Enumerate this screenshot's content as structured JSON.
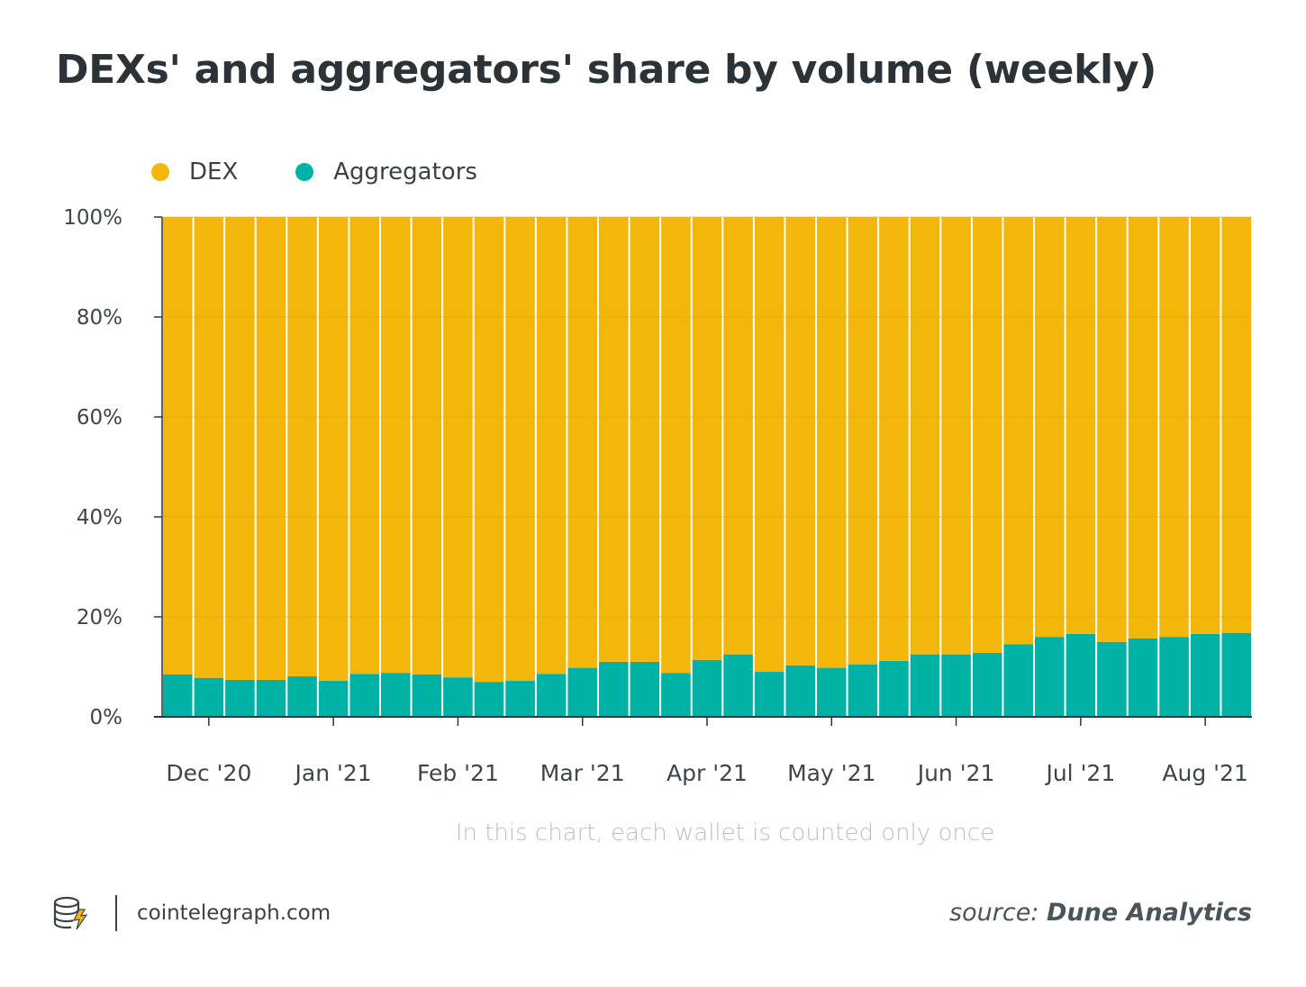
{
  "title": "DEXs' and aggregators' share by volume (weekly)",
  "note": "In this chart, each wallet is counted only once",
  "brand": {
    "text": "cointelegraph.com",
    "logo_icon": "cointelegraph-logo-icon"
  },
  "source": {
    "prefix": "source:",
    "name": "Dune Analytics"
  },
  "colors": {
    "dex": "#f3b70c",
    "aggregators": "#00b2a6",
    "axis": "#2d3439",
    "grid": "#e7a40a"
  },
  "chart_data": {
    "type": "bar",
    "stacked": true,
    "orientation": "vertical",
    "legend_position": "top-left",
    "grid": true,
    "ylim": [
      0,
      100
    ],
    "yticks": [
      "0%",
      "20%",
      "40%",
      "60%",
      "80%",
      "100%"
    ],
    "xticks": [
      "Dec '20",
      "Jan '21",
      "Feb '21",
      "Mar '21",
      "Apr '21",
      "May '21",
      "Jun '21",
      "Jul '21",
      "Aug '21"
    ],
    "xtick_bar_index": [
      1,
      5,
      9,
      13,
      17,
      21,
      25,
      29,
      33
    ],
    "series": [
      {
        "name": "Aggregators",
        "color": "#00b2a6",
        "values": [
          8.5,
          7.8,
          7.4,
          7.4,
          8.1,
          7.2,
          8.6,
          8.8,
          8.5,
          7.9,
          7.0,
          7.2,
          8.6,
          9.8,
          11.0,
          11.0,
          8.8,
          11.4,
          12.5,
          9.0,
          10.3,
          9.8,
          10.5,
          11.2,
          12.5,
          12.5,
          12.8,
          14.5,
          16.0,
          16.6,
          15.0,
          15.7,
          16.0,
          16.6,
          16.8
        ]
      },
      {
        "name": "DEX",
        "color": "#f3b70c",
        "values": [
          91.5,
          92.2,
          92.6,
          92.6,
          91.9,
          92.8,
          91.4,
          91.2,
          91.5,
          92.1,
          93.0,
          92.8,
          91.4,
          90.2,
          89.0,
          89.0,
          91.2,
          88.6,
          87.5,
          91.0,
          89.7,
          90.2,
          89.5,
          88.8,
          87.5,
          87.5,
          87.2,
          85.5,
          84.0,
          83.4,
          85.0,
          84.3,
          84.0,
          83.4,
          83.2
        ]
      }
    ]
  }
}
